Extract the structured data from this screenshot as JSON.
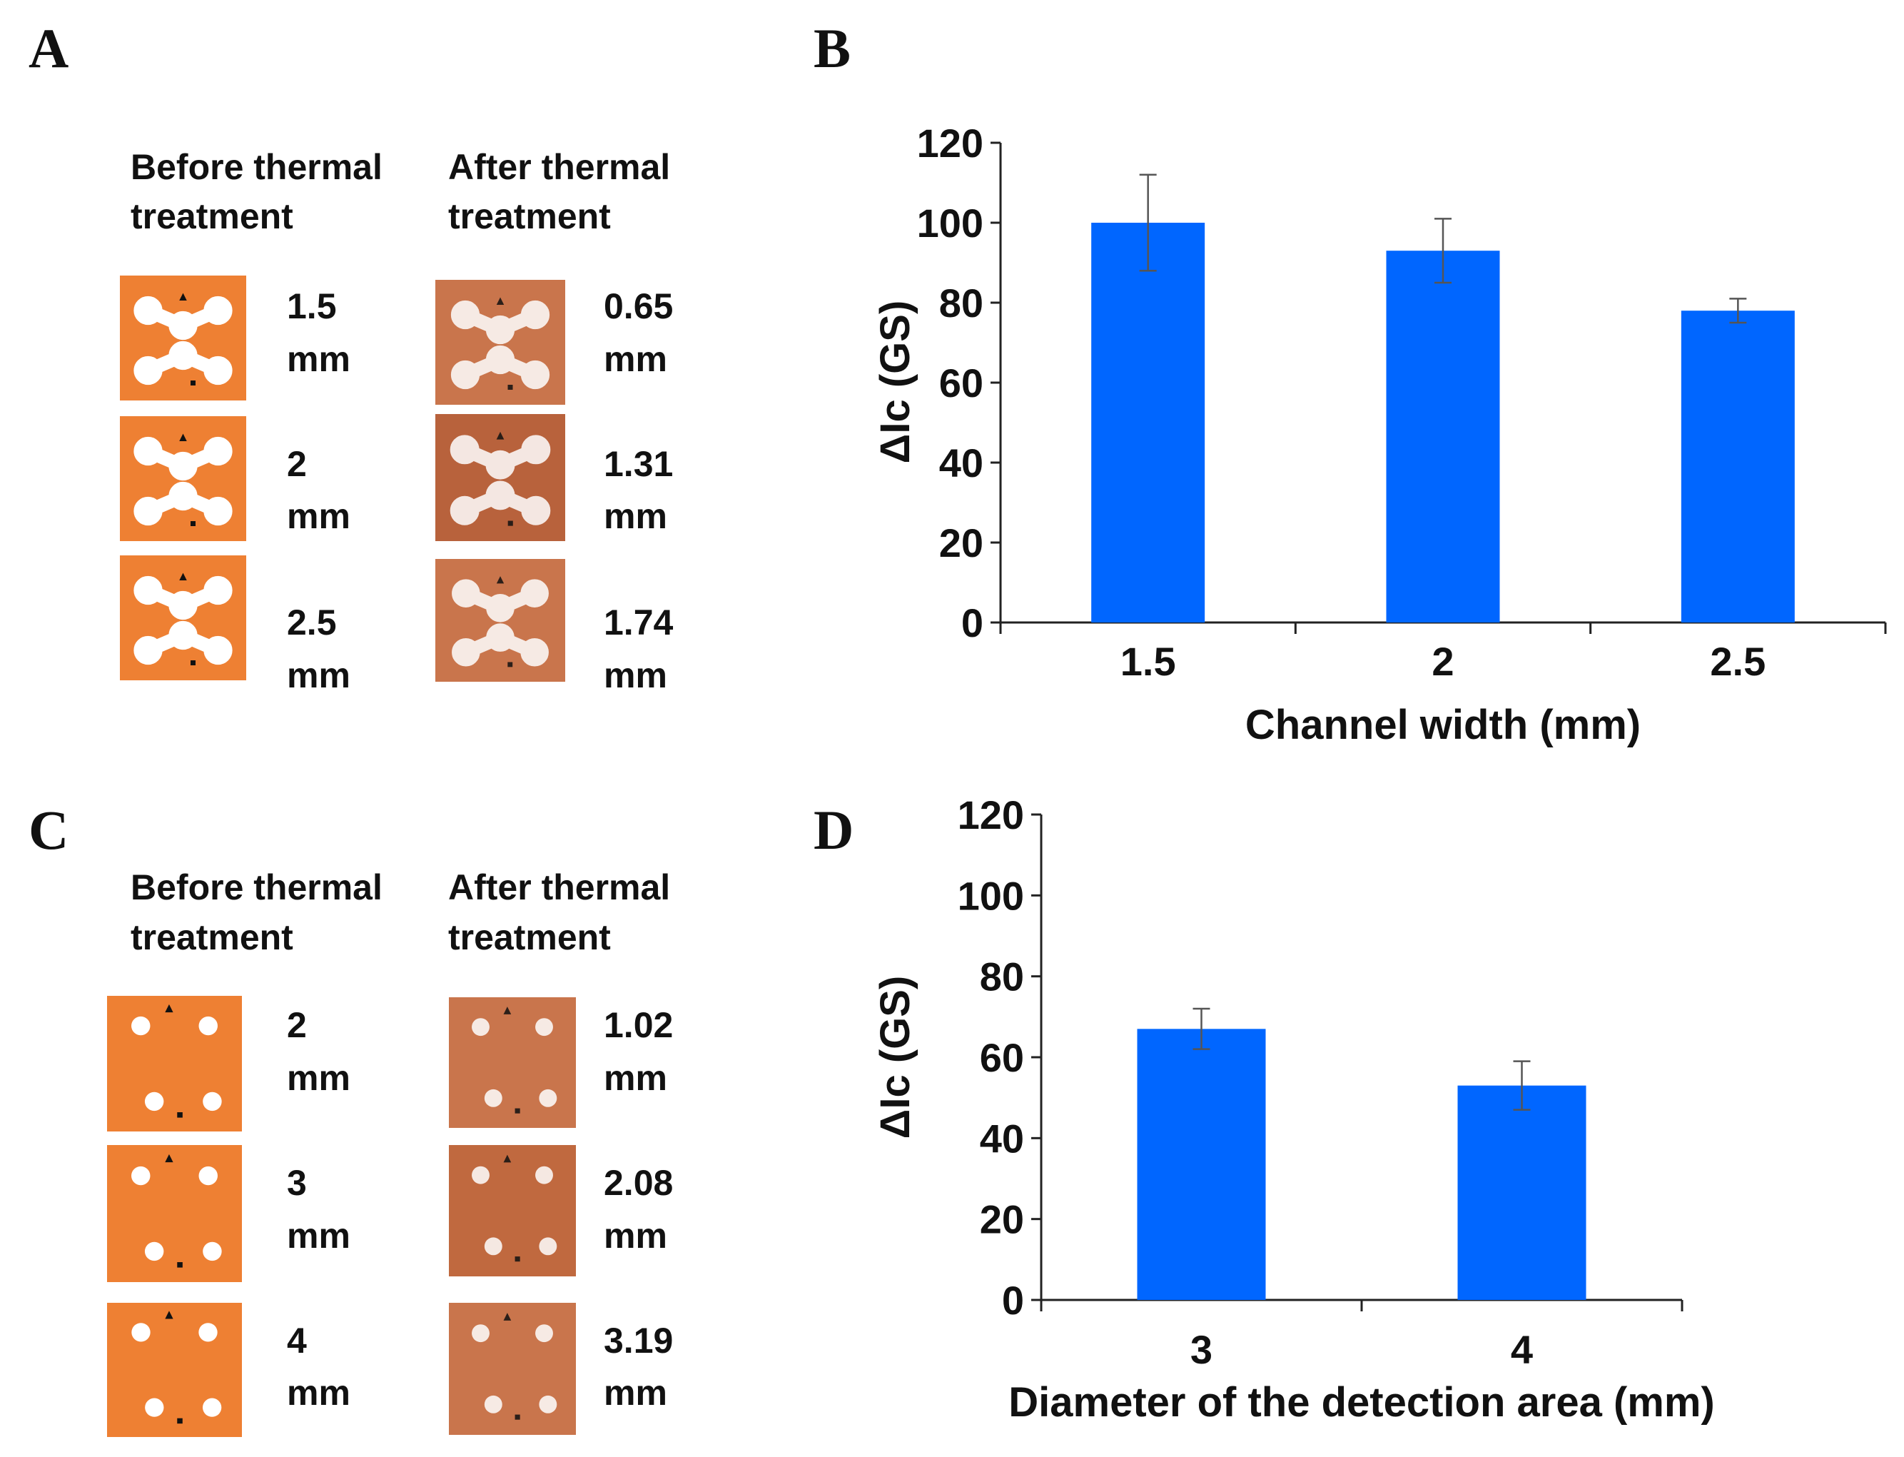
{
  "panels": [
    {
      "letter": "A",
      "before_header": [
        "Before thermal",
        "treatment"
      ],
      "after_header": [
        "After thermal",
        "treatment"
      ],
      "before_sizes": [
        [
          "1.5",
          "mm"
        ],
        [
          "2",
          "mm"
        ],
        [
          "2.5",
          "mm"
        ]
      ],
      "after_sizes": [
        [
          "0.65",
          "mm"
        ],
        [
          "1.31",
          "mm"
        ],
        [
          "1.74",
          "mm"
        ]
      ]
    },
    {
      "letter": "C",
      "before_header": [
        "Before thermal",
        "treatment"
      ],
      "after_header": [
        "After thermal",
        "treatment"
      ],
      "before_sizes": [
        [
          "2",
          "mm"
        ],
        [
          "3",
          "mm"
        ],
        [
          "4",
          "mm"
        ]
      ],
      "after_sizes": [
        [
          "1.02",
          "mm"
        ],
        [
          "2.08",
          "mm"
        ],
        [
          "3.19",
          "mm"
        ]
      ]
    }
  ],
  "chart_data": [
    {
      "type": "bar",
      "letter": "B",
      "categories": [
        "1.5",
        "2",
        "2.5"
      ],
      "values": [
        100,
        93,
        78
      ],
      "errors": [
        12,
        8,
        3
      ],
      "color": "#0066ff",
      "ylabel": "ΔIc (GS)",
      "xlabel": "Channel width (mm)",
      "ylim": [
        0,
        120
      ],
      "yticks": [
        0,
        20,
        40,
        60,
        80,
        100,
        120
      ]
    },
    {
      "type": "bar",
      "letter": "D",
      "categories": [
        "3",
        "4"
      ],
      "values": [
        67,
        53
      ],
      "errors": [
        5,
        6
      ],
      "color": "#0066ff",
      "ylabel": "ΔIc (GS)",
      "xlabel": "Diameter of the detection area (mm)",
      "ylim": [
        0,
        120
      ],
      "yticks": [
        0,
        20,
        40,
        60,
        80,
        100,
        120
      ]
    }
  ]
}
